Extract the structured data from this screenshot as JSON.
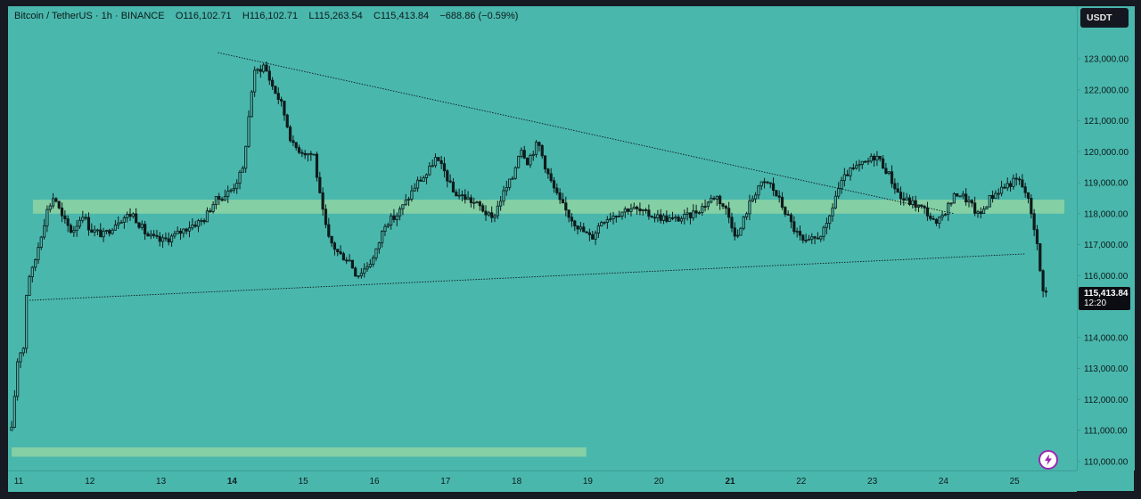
{
  "legend": {
    "symbol": "Bitcoin / TetherUS",
    "interval": "1h",
    "exchange": "BINANCE",
    "open": "O116,102.71",
    "high": "H116,102.71",
    "low": "L115,263.54",
    "close": "C115,413.84",
    "change": "−688.86 (−0.59%)"
  },
  "currency_button": "USDT",
  "last_price": {
    "value": "115,413.84",
    "countdown": "12:20"
  },
  "icons": {
    "flash": "lightning-icon"
  },
  "colors": {
    "background": "#4ab7ad",
    "zone": "#8ed4a2",
    "candle": "#0d1b1a"
  },
  "chart_data": {
    "type": "candlestick",
    "instrument": "BTCUSDT",
    "ylim": [
      109700,
      124300
    ],
    "y_ticks": [
      "123,000.00",
      "122,000.00",
      "121,000.00",
      "120,000.00",
      "119,000.00",
      "118,000.00",
      "117,000.00",
      "116,000.00",
      "114,000.00",
      "113,000.00",
      "112,000.00",
      "111,000.00",
      "110,000.00"
    ],
    "y_tick_values": [
      123000,
      122000,
      121000,
      120000,
      119000,
      118000,
      117000,
      116000,
      114000,
      113000,
      112000,
      111000,
      110000
    ],
    "x_ticks": [
      {
        "label": "11",
        "day": 11,
        "bold": false
      },
      {
        "label": "12",
        "day": 12,
        "bold": false
      },
      {
        "label": "13",
        "day": 13,
        "bold": false
      },
      {
        "label": "14",
        "day": 14,
        "bold": true
      },
      {
        "label": "15",
        "day": 15,
        "bold": false
      },
      {
        "label": "16",
        "day": 16,
        "bold": false
      },
      {
        "label": "17",
        "day": 17,
        "bold": false
      },
      {
        "label": "18",
        "day": 18,
        "bold": false
      },
      {
        "label": "19",
        "day": 19,
        "bold": false
      },
      {
        "label": "20",
        "day": 20,
        "bold": false
      },
      {
        "label": "21",
        "day": 21,
        "bold": true
      },
      {
        "label": "22",
        "day": 22,
        "bold": false
      },
      {
        "label": "23",
        "day": 23,
        "bold": false
      },
      {
        "label": "24",
        "day": 24,
        "bold": false
      },
      {
        "label": "25",
        "day": 25,
        "bold": false
      }
    ],
    "close_path": [
      [
        10.9,
        111000
      ],
      [
        11.0,
        113700
      ],
      [
        11.06,
        113400
      ],
      [
        11.12,
        115900
      ],
      [
        11.2,
        116200
      ],
      [
        11.3,
        117200
      ],
      [
        11.4,
        118100
      ],
      [
        11.5,
        118600
      ],
      [
        11.6,
        117900
      ],
      [
        11.75,
        117400
      ],
      [
        11.9,
        118000
      ],
      [
        12.0,
        117500
      ],
      [
        12.2,
        117300
      ],
      [
        12.4,
        117800
      ],
      [
        12.6,
        118000
      ],
      [
        12.8,
        117300
      ],
      [
        13.0,
        117100
      ],
      [
        13.2,
        117300
      ],
      [
        13.4,
        117600
      ],
      [
        13.6,
        117800
      ],
      [
        13.75,
        118400
      ],
      [
        13.9,
        118600
      ],
      [
        14.0,
        118800
      ],
      [
        14.15,
        119400
      ],
      [
        14.3,
        122500
      ],
      [
        14.45,
        122800
      ],
      [
        14.55,
        122200
      ],
      [
        14.7,
        121500
      ],
      [
        14.85,
        120200
      ],
      [
        15.0,
        120000
      ],
      [
        15.15,
        119900
      ],
      [
        15.25,
        118300
      ],
      [
        15.35,
        117200
      ],
      [
        15.5,
        116700
      ],
      [
        15.65,
        116500
      ],
      [
        15.75,
        116000
      ],
      [
        15.85,
        116200
      ],
      [
        16.0,
        116600
      ],
      [
        16.15,
        117700
      ],
      [
        16.3,
        117900
      ],
      [
        16.45,
        118400
      ],
      [
        16.6,
        119000
      ],
      [
        16.75,
        119300
      ],
      [
        16.85,
        119800
      ],
      [
        17.0,
        119300
      ],
      [
        17.1,
        118700
      ],
      [
        17.3,
        118500
      ],
      [
        17.5,
        118200
      ],
      [
        17.65,
        117800
      ],
      [
        17.8,
        118600
      ],
      [
        17.95,
        119200
      ],
      [
        18.05,
        120200
      ],
      [
        18.15,
        119700
      ],
      [
        18.3,
        120300
      ],
      [
        18.45,
        119200
      ],
      [
        18.6,
        118400
      ],
      [
        18.75,
        117900
      ],
      [
        18.9,
        117500
      ],
      [
        19.05,
        117200
      ],
      [
        19.2,
        117800
      ],
      [
        19.4,
        118000
      ],
      [
        19.6,
        118200
      ],
      [
        19.8,
        118000
      ],
      [
        20.0,
        117900
      ],
      [
        20.2,
        117800
      ],
      [
        20.4,
        117900
      ],
      [
        20.6,
        118200
      ],
      [
        20.8,
        118600
      ],
      [
        20.95,
        118100
      ],
      [
        21.1,
        117200
      ],
      [
        21.25,
        118200
      ],
      [
        21.4,
        118900
      ],
      [
        21.55,
        119000
      ],
      [
        21.7,
        118400
      ],
      [
        21.9,
        117500
      ],
      [
        22.05,
        117000
      ],
      [
        22.2,
        117200
      ],
      [
        22.35,
        117500
      ],
      [
        22.5,
        118700
      ],
      [
        22.65,
        119300
      ],
      [
        22.8,
        119500
      ],
      [
        22.95,
        119700
      ],
      [
        23.05,
        119900
      ],
      [
        23.2,
        119400
      ],
      [
        23.4,
        118500
      ],
      [
        23.6,
        118300
      ],
      [
        23.75,
        118100
      ],
      [
        23.9,
        117600
      ],
      [
        24.05,
        118200
      ],
      [
        24.2,
        118700
      ],
      [
        24.35,
        118400
      ],
      [
        24.5,
        117900
      ],
      [
        24.65,
        118500
      ],
      [
        24.8,
        118800
      ],
      [
        24.95,
        119000
      ],
      [
        25.05,
        119100
      ],
      [
        25.15,
        118700
      ],
      [
        25.22,
        118200
      ],
      [
        25.3,
        117300
      ],
      [
        25.38,
        115700
      ],
      [
        25.45,
        115400
      ]
    ],
    "trendlines": [
      {
        "name": "descending-resistance",
        "from": [
          13.8,
          123200
        ],
        "to": [
          24.15,
          118000
        ]
      },
      {
        "name": "ascending-support",
        "from": [
          11.15,
          115200
        ],
        "to": [
          25.15,
          116700
        ]
      }
    ],
    "zones": [
      {
        "from_day": 11.2,
        "to_day": 25.7,
        "low": 118000,
        "high": 118450
      },
      {
        "from_day": 10.9,
        "to_day": 18.98,
        "low": 110150,
        "high": 110450
      }
    ],
    "last_price": 115413.84
  }
}
